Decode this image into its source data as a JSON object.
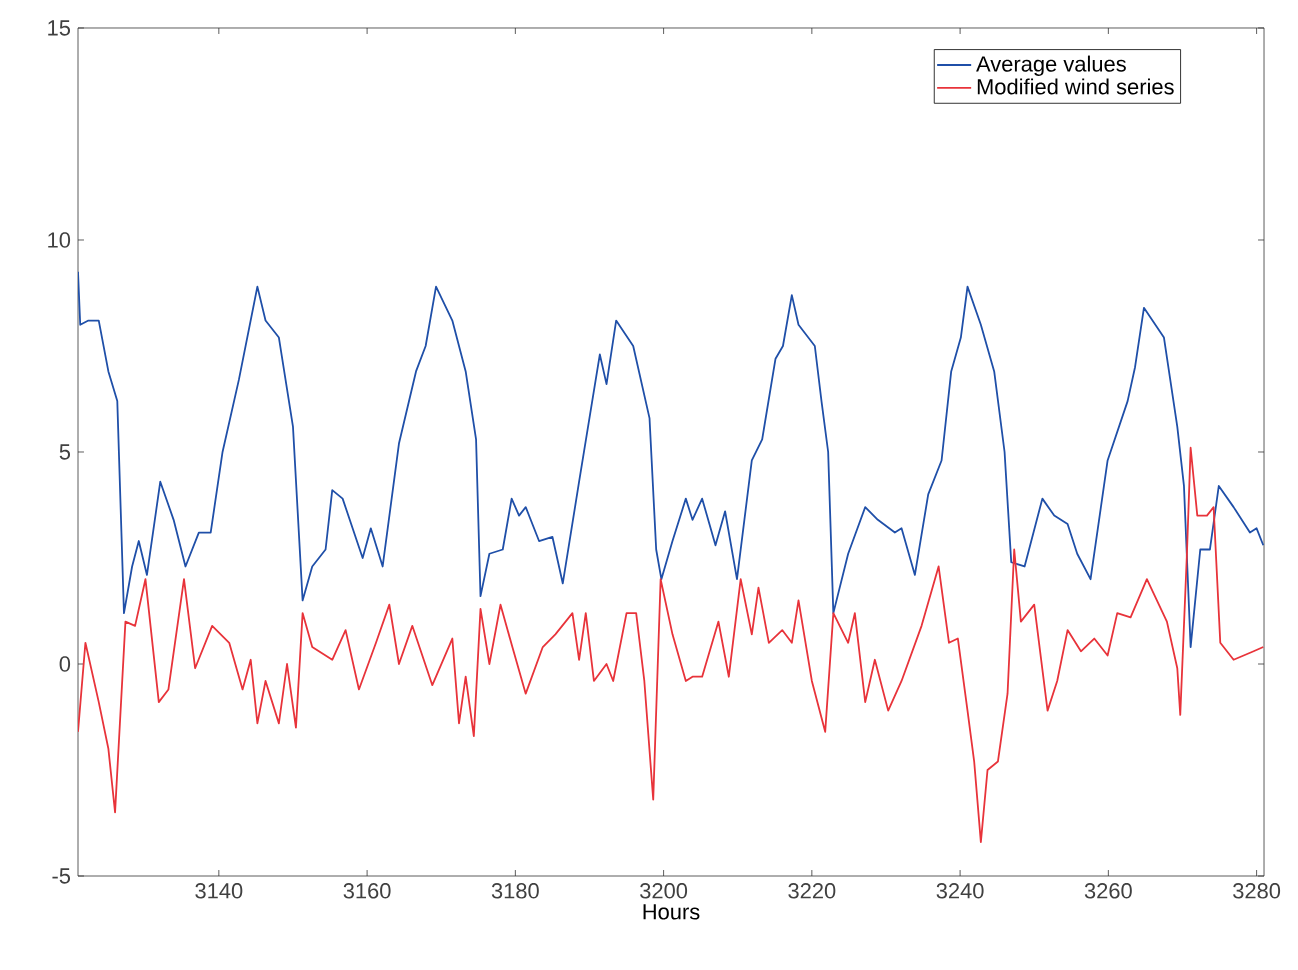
{
  "chart_data": {
    "type": "line",
    "xlabel": "Hours",
    "xlim": [
      3121,
      3281
    ],
    "ylim": [
      -5,
      15
    ],
    "xticks": [
      3140,
      3160,
      3180,
      3200,
      3220,
      3240,
      3260,
      3280
    ],
    "yticks": [
      -5,
      0,
      5,
      10,
      15
    ],
    "legend": "top right",
    "grid": false,
    "marker": "none",
    "line_style": "solid",
    "series": [
      {
        "name": "Average values",
        "color": "#1f4fa8",
        "x": [
          3121.0,
          3121.3,
          3122.4,
          3123.8,
          3125.1,
          3126.3,
          3127.2,
          3128.3,
          3129.2,
          3130.3,
          3132.1,
          3133.9,
          3135.5,
          3137.3,
          3138.9,
          3140.5,
          3142.7,
          3145.2,
          3146.3,
          3148.1,
          3150.0,
          3151.3,
          3152.6,
          3154.4,
          3155.3,
          3156.7,
          3159.4,
          3160.5,
          3162.1,
          3164.3,
          3166.6,
          3167.9,
          3169.3,
          3171.5,
          3173.3,
          3174.7,
          3175.3,
          3176.5,
          3178.3,
          3179.5,
          3180.5,
          3181.4,
          3183.2,
          3185.0,
          3186.4,
          3188.6,
          3191.4,
          3192.3,
          3193.6,
          3195.9,
          3198.1,
          3199.0,
          3199.7,
          3201.2,
          3203.0,
          3203.9,
          3205.2,
          3207.0,
          3208.3,
          3209.9,
          3211.9,
          3213.3,
          3215.1,
          3216.1,
          3217.3,
          3218.2,
          3220.4,
          3221.3,
          3222.2,
          3222.9,
          3224.9,
          3227.2,
          3228.9,
          3231.2,
          3232.1,
          3233.9,
          3235.7,
          3237.5,
          3238.8,
          3240.1,
          3241.0,
          3242.8,
          3244.6,
          3246.0,
          3246.9,
          3248.7,
          3251.1,
          3252.7,
          3254.5,
          3255.8,
          3257.6,
          3259.9,
          3262.6,
          3263.6,
          3264.8,
          3267.5,
          3269.3,
          3270.2,
          3271.1,
          3272.4,
          3273.7,
          3274.9,
          3276.9,
          3279.1,
          3280.0,
          3280.9
        ],
        "values": [
          9.25,
          8.0,
          8.1,
          8.1,
          6.9,
          6.2,
          1.2,
          2.3,
          2.9,
          2.1,
          4.3,
          3.4,
          2.3,
          3.1,
          3.1,
          5.0,
          6.7,
          8.9,
          8.1,
          7.7,
          5.6,
          1.5,
          2.3,
          2.7,
          4.1,
          3.9,
          2.5,
          3.2,
          2.3,
          5.2,
          6.9,
          7.5,
          8.9,
          8.1,
          6.9,
          5.3,
          1.6,
          2.6,
          2.7,
          3.9,
          3.5,
          3.7,
          2.9,
          3.0,
          1.9,
          4.3,
          7.3,
          6.6,
          8.1,
          7.5,
          5.8,
          2.7,
          2.0,
          2.9,
          3.9,
          3.4,
          3.9,
          2.8,
          3.6,
          2.0,
          4.8,
          5.3,
          7.2,
          7.5,
          8.7,
          8.0,
          7.5,
          6.2,
          5.0,
          1.2,
          2.6,
          3.7,
          3.4,
          3.1,
          3.2,
          2.1,
          4.0,
          4.8,
          6.9,
          7.7,
          8.9,
          8.0,
          6.9,
          5.0,
          2.4,
          2.3,
          3.9,
          3.5,
          3.3,
          2.6,
          2.0,
          4.8,
          6.2,
          7.0,
          8.4,
          7.7,
          5.6,
          4.2,
          0.4,
          2.7,
          2.7,
          4.2,
          3.7,
          3.1,
          3.2,
          2.8
        ]
      },
      {
        "name": "Modified wind series",
        "color": "#e8333a",
        "x": [
          3121.0,
          3122.0,
          3123.8,
          3125.1,
          3126.0,
          3127.4,
          3128.7,
          3130.1,
          3131.9,
          3133.2,
          3135.3,
          3136.8,
          3139.1,
          3141.4,
          3143.2,
          3144.3,
          3145.2,
          3146.3,
          3148.1,
          3149.2,
          3150.4,
          3151.3,
          3152.6,
          3155.3,
          3157.1,
          3158.9,
          3161.2,
          3163.0,
          3164.3,
          3166.1,
          3168.8,
          3171.5,
          3172.4,
          3173.3,
          3174.4,
          3175.3,
          3176.5,
          3178.0,
          3179.6,
          3181.4,
          3183.7,
          3185.4,
          3187.7,
          3188.6,
          3189.5,
          3190.6,
          3192.3,
          3193.2,
          3195.0,
          3196.3,
          3197.4,
          3198.6,
          3199.6,
          3201.2,
          3203.0,
          3203.9,
          3205.2,
          3207.4,
          3208.8,
          3210.4,
          3211.9,
          3212.8,
          3214.2,
          3216.0,
          3217.3,
          3218.2,
          3220.0,
          3221.8,
          3222.9,
          3224.9,
          3225.8,
          3227.2,
          3228.5,
          3230.3,
          3232.1,
          3234.8,
          3237.1,
          3238.5,
          3239.7,
          3241.0,
          3241.9,
          3242.8,
          3243.7,
          3245.1,
          3246.4,
          3247.3,
          3248.2,
          3250.0,
          3251.8,
          3253.1,
          3254.5,
          3256.3,
          3258.1,
          3259.9,
          3261.2,
          3263.0,
          3265.2,
          3267.9,
          3269.3,
          3269.7,
          3270.6,
          3271.1,
          3272.0,
          3273.3,
          3274.2,
          3275.1,
          3276.9,
          3279.6,
          3280.9
        ],
        "values": [
          -1.6,
          0.5,
          -0.9,
          -2.0,
          -3.5,
          1.0,
          0.9,
          2.0,
          -0.9,
          -0.6,
          2.0,
          -0.1,
          0.9,
          0.5,
          -0.6,
          0.1,
          -1.4,
          -0.4,
          -1.4,
          0.0,
          -1.5,
          1.2,
          0.4,
          0.1,
          0.8,
          -0.6,
          0.5,
          1.4,
          0.0,
          0.9,
          -0.5,
          0.6,
          -1.4,
          -0.3,
          -1.7,
          1.3,
          0.0,
          1.4,
          0.4,
          -0.7,
          0.4,
          0.7,
          1.2,
          0.1,
          1.2,
          -0.4,
          0.0,
          -0.4,
          1.2,
          1.2,
          -0.4,
          -3.2,
          2.0,
          0.7,
          -0.4,
          -0.3,
          -0.3,
          1.0,
          -0.3,
          2.0,
          0.7,
          1.8,
          0.5,
          0.8,
          0.5,
          1.5,
          -0.4,
          -1.6,
          1.2,
          0.5,
          1.2,
          -0.9,
          0.1,
          -1.1,
          -0.4,
          0.9,
          2.3,
          0.5,
          0.6,
          -1.1,
          -2.3,
          -4.2,
          -2.5,
          -2.3,
          -0.7,
          2.7,
          1.0,
          1.4,
          -1.1,
          -0.4,
          0.8,
          0.3,
          0.6,
          0.2,
          1.2,
          1.1,
          2.0,
          1.0,
          -0.1,
          -1.2,
          2.6,
          5.1,
          3.5,
          3.5,
          3.7,
          0.5,
          0.1,
          0.3,
          0.4
        ]
      }
    ]
  }
}
